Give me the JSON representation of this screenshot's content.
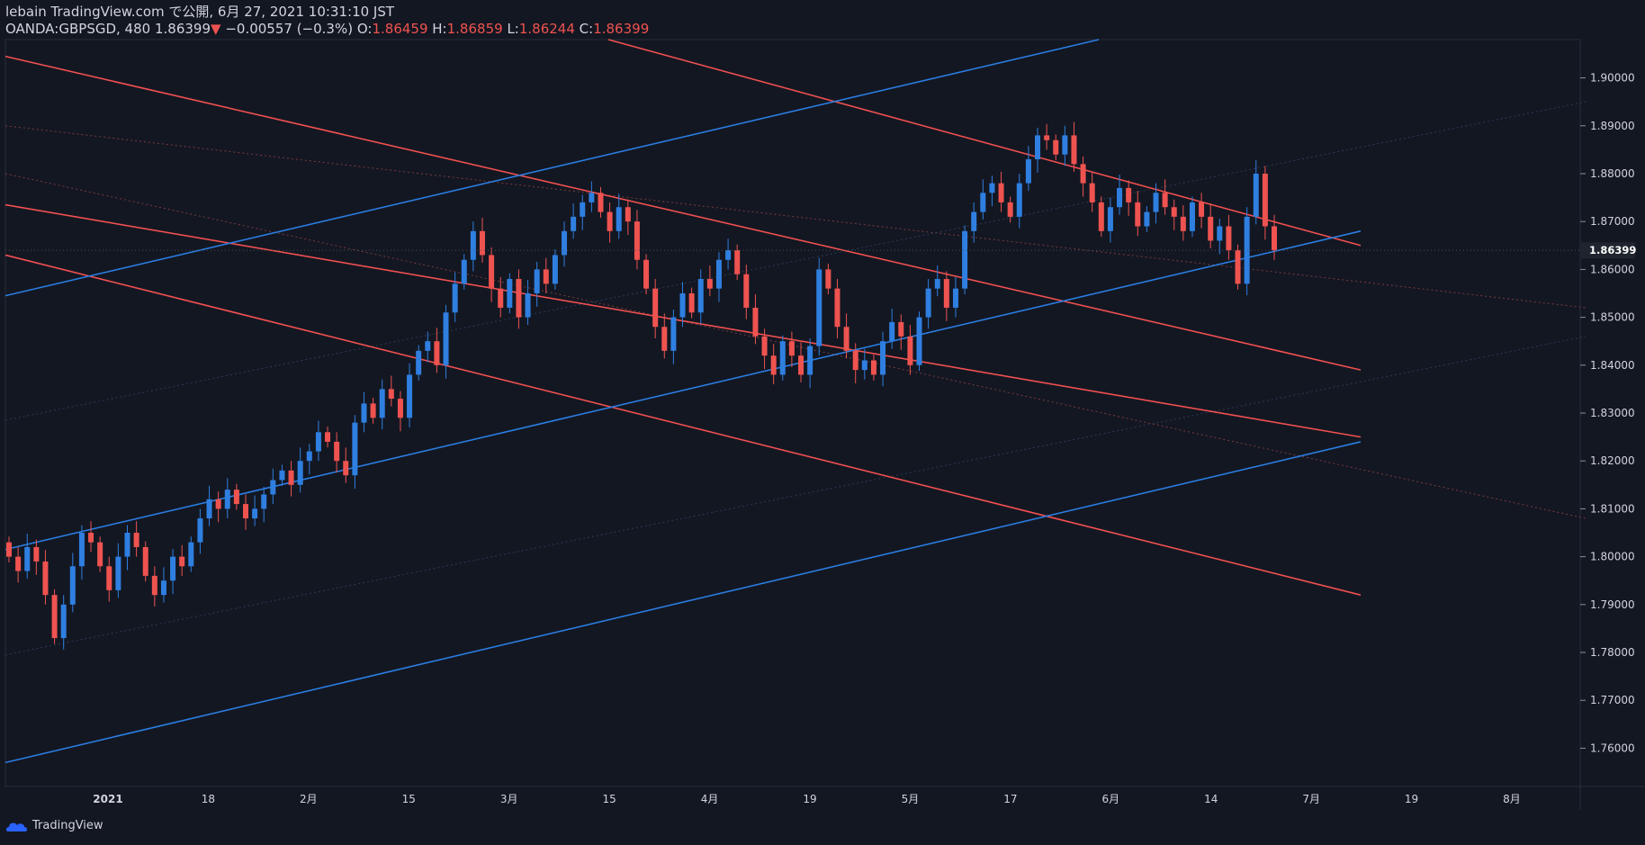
{
  "header": {
    "publish_line": "lebain TradingView.com で公開, 6月 27, 2021 10:31:10 JST",
    "symbol": "OANDA:GBPSGD, 480",
    "last": "1.86399",
    "change": "−0.00557 (−0.3%)",
    "o_label": "O:",
    "o_value": "1.86459",
    "h_label": "H:",
    "h_value": "1.86859",
    "l_label": "L:",
    "l_value": "1.86244",
    "c_label": "C:",
    "c_value": "1.86399",
    "down_arrow": "▼"
  },
  "brand": {
    "label": "TradingView",
    "icon": "tradingview-cloud-icon"
  },
  "colors": {
    "background": "#131722",
    "up": "#2962ff",
    "up_candle": "#2f7fe0",
    "down_candle": "#ef5350",
    "red_line": "#f05050",
    "blue_line": "#2a7de1",
    "axis_text": "#d1d4dc"
  },
  "chart_data": {
    "type": "candlestick",
    "price_axis": {
      "ylim": [
        1.752,
        1.908
      ],
      "ticks": [
        "1.90000",
        "1.89000",
        "1.88000",
        "1.87000",
        "1.86000",
        "1.85000",
        "1.84000",
        "1.83000",
        "1.82000",
        "1.81000",
        "1.80000",
        "1.79000",
        "1.78000",
        "1.77000",
        "1.76000"
      ],
      "last_price_label": "1.86399"
    },
    "time_axis": {
      "ticks": [
        "2021",
        "18",
        "2月",
        "15",
        "3月",
        "15",
        "4月",
        "19",
        "5月",
        "17",
        "6月",
        "14",
        "7月",
        "19",
        "8月"
      ]
    },
    "closes": [
      1.8,
      1.797,
      1.802,
      1.799,
      1.792,
      1.783,
      1.79,
      1.798,
      1.805,
      1.803,
      1.798,
      1.793,
      1.8,
      1.805,
      1.802,
      1.796,
      1.792,
      1.795,
      1.8,
      1.798,
      1.803,
      1.808,
      1.812,
      1.81,
      1.814,
      1.811,
      1.808,
      1.81,
      1.813,
      1.816,
      1.818,
      1.815,
      1.82,
      1.822,
      1.826,
      1.824,
      1.82,
      1.817,
      1.828,
      1.832,
      1.829,
      1.835,
      1.833,
      1.829,
      1.838,
      1.843,
      1.845,
      1.84,
      1.851,
      1.857,
      1.862,
      1.868,
      1.863,
      1.856,
      1.852,
      1.858,
      1.85,
      1.855,
      1.86,
      1.857,
      1.863,
      1.868,
      1.871,
      1.874,
      1.876,
      1.872,
      1.868,
      1.873,
      1.87,
      1.862,
      1.856,
      1.848,
      1.843,
      1.85,
      1.855,
      1.851,
      1.858,
      1.856,
      1.862,
      1.864,
      1.859,
      1.852,
      1.846,
      1.842,
      1.838,
      1.845,
      1.842,
      1.838,
      1.844,
      1.86,
      1.856,
      1.848,
      1.843,
      1.839,
      1.841,
      1.838,
      1.845,
      1.849,
      1.846,
      1.84,
      1.85,
      1.856,
      1.858,
      1.852,
      1.856,
      1.868,
      1.872,
      1.876,
      1.878,
      1.874,
      1.871,
      1.878,
      1.883,
      1.888,
      1.887,
      1.884,
      1.888,
      1.882,
      1.878,
      1.874,
      1.868,
      1.873,
      1.877,
      1.874,
      1.869,
      1.872,
      1.876,
      1.873,
      1.871,
      1.868,
      1.874,
      1.871,
      1.866,
      1.869,
      1.864,
      1.857,
      1.871,
      1.88,
      1.869,
      1.864
    ],
    "opens_seed": "derived",
    "trendlines": [
      {
        "color": "red",
        "x1": 0,
        "y1": 1.9045,
        "x2": 1506,
        "y2": 1.839
      },
      {
        "color": "red",
        "x1": 670,
        "y1": 1.908,
        "x2": 1506,
        "y2": 1.865
      },
      {
        "color": "red",
        "x1": 0,
        "y1": 1.8735,
        "x2": 1506,
        "y2": 1.825
      },
      {
        "color": "red",
        "x1": 0,
        "y1": 1.863,
        "x2": 1506,
        "y2": 1.792
      },
      {
        "color": "blue",
        "x1": 0,
        "y1": 1.8545,
        "x2": 1215,
        "y2": 1.908
      },
      {
        "color": "blue",
        "x1": 0,
        "y1": 1.8015,
        "x2": 1506,
        "y2": 1.868
      },
      {
        "color": "blue",
        "x1": 0,
        "y1": 1.757,
        "x2": 1506,
        "y2": 1.824
      }
    ]
  }
}
